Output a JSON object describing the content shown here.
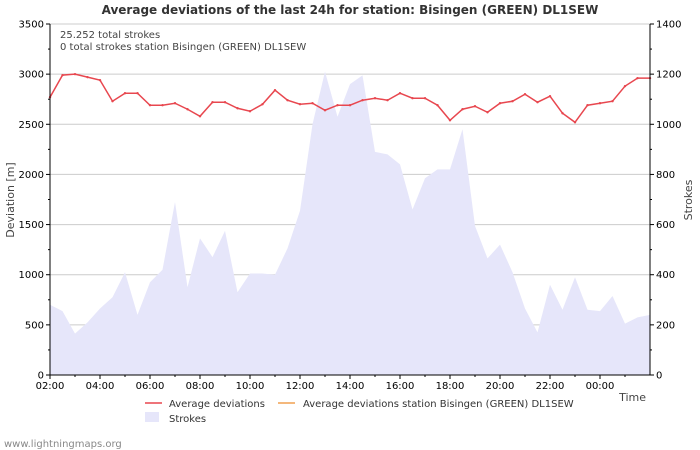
{
  "chart_data": {
    "type": "line",
    "title": "Average deviations of the last 24h for station: Bisingen (GREEN) DL1SEW",
    "info_lines": [
      "25.252 total strokes",
      "0 total strokes station Bisingen (GREEN) DL1SEW"
    ],
    "xlabel": "Time",
    "ylabel_left": "Deviation  [m]",
    "ylabel_right": "Strokes",
    "x_range_hours": [
      0,
      24
    ],
    "x_tick_labels": [
      "02:00",
      "04:00",
      "06:00",
      "08:00",
      "10:00",
      "12:00",
      "14:00",
      "16:00",
      "18:00",
      "20:00",
      "22:00",
      "00:00"
    ],
    "x_tick_hours": [
      0,
      2,
      4,
      6,
      8,
      10,
      12,
      14,
      16,
      18,
      20,
      22
    ],
    "ylim_left": [
      0,
      3500
    ],
    "y_ticks_left": [
      0,
      500,
      1000,
      1500,
      2000,
      2500,
      3000,
      3500
    ],
    "ylim_right": [
      0,
      1400
    ],
    "y_ticks_right": [
      0,
      200,
      400,
      600,
      800,
      1000,
      1200,
      1400
    ],
    "x_hours": [
      0,
      0.5,
      1,
      1.5,
      2,
      2.5,
      3,
      3.5,
      4,
      4.5,
      5,
      5.5,
      6,
      6.5,
      7,
      7.5,
      8,
      8.5,
      9,
      9.5,
      10,
      10.5,
      11,
      11.5,
      12,
      12.5,
      13,
      13.5,
      14,
      14.5,
      15,
      15.5,
      16,
      16.5,
      17,
      17.5,
      18,
      18.5,
      19,
      19.5,
      20,
      20.5,
      21,
      21.5,
      22,
      22.5,
      23,
      23.5,
      24
    ],
    "series": [
      {
        "name": "Average deviations",
        "axis": "left",
        "color": "#e8474f",
        "values": [
          2770,
          2990,
          3000,
          2970,
          2940,
          2730,
          2810,
          2810,
          2690,
          2690,
          2710,
          2650,
          2580,
          2720,
          2720,
          2660,
          2630,
          2700,
          2840,
          2740,
          2700,
          2710,
          2640,
          2690,
          2690,
          2740,
          2760,
          2740,
          2810,
          2760,
          2760,
          2690,
          2540,
          2650,
          2680,
          2620,
          2710,
          2730,
          2800,
          2720,
          2780,
          2610,
          2520,
          2690,
          2710,
          2730,
          2880,
          2960,
          2960
        ]
      },
      {
        "name": "Average deviations station Bisingen (GREEN) DL1SEW",
        "axis": "left",
        "color": "#f0a050",
        "values": []
      },
      {
        "name": "Strokes",
        "axis": "right",
        "color": "#e6e6fa",
        "values": [
          280,
          255,
          165,
          210,
          265,
          310,
          410,
          240,
          370,
          420,
          690,
          350,
          545,
          470,
          575,
          330,
          405,
          405,
          400,
          505,
          655,
          1000,
          1210,
          1030,
          1160,
          1195,
          890,
          880,
          840,
          660,
          785,
          820,
          820,
          980,
          595,
          465,
          520,
          410,
          265,
          170,
          360,
          260,
          390,
          260,
          255,
          315,
          205,
          230,
          240
        ]
      }
    ],
    "legend": [
      "Average deviations",
      "Average deviations station Bisingen (GREEN) DL1SEW",
      "Strokes"
    ],
    "legend_position": "bottom",
    "grid": true
  },
  "credit": "www.lightningmaps.org"
}
